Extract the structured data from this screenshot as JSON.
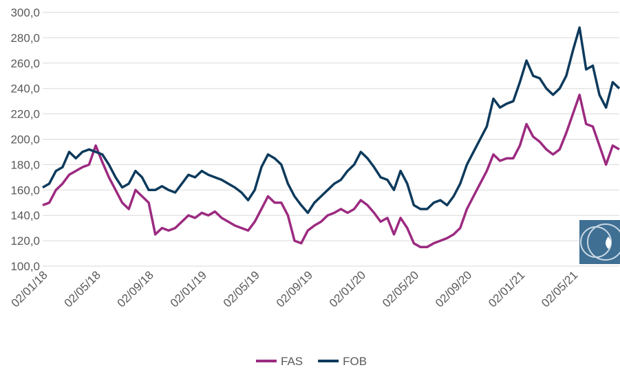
{
  "chart_data": {
    "type": "line",
    "categories": [
      "02/01/18",
      null,
      null,
      null,
      null,
      null,
      null,
      null,
      "02/05/18",
      null,
      null,
      null,
      null,
      null,
      null,
      null,
      "02/09/18",
      null,
      null,
      null,
      null,
      null,
      null,
      null,
      "02/01/19",
      null,
      null,
      null,
      null,
      null,
      null,
      null,
      "02/05/19",
      null,
      null,
      null,
      null,
      null,
      null,
      null,
      "02/09/19",
      null,
      null,
      null,
      null,
      null,
      null,
      null,
      "02/01/20",
      null,
      null,
      null,
      null,
      null,
      null,
      null,
      "02/05/20",
      null,
      null,
      null,
      null,
      null,
      null,
      null,
      "02/09/20",
      null,
      null,
      null,
      null,
      null,
      null,
      null,
      "02/01/21",
      null,
      null,
      null,
      null,
      null,
      null,
      null,
      "02/05/21",
      null,
      null,
      null,
      null,
      null,
      null,
      null
    ],
    "series": [
      {
        "name": "FAS",
        "color": "#9c2a80",
        "values": [
          148,
          150,
          160,
          165,
          172,
          175,
          178,
          180,
          195,
          182,
          170,
          160,
          150,
          145,
          160,
          155,
          150,
          125,
          130,
          128,
          130,
          135,
          140,
          138,
          142,
          140,
          143,
          138,
          135,
          132,
          130,
          128,
          135,
          145,
          155,
          150,
          150,
          140,
          120,
          118,
          128,
          132,
          135,
          140,
          142,
          145,
          142,
          145,
          152,
          148,
          142,
          135,
          138,
          125,
          138,
          130,
          118,
          115,
          115,
          118,
          120,
          122,
          125,
          130,
          145,
          155,
          165,
          175,
          188,
          183,
          185,
          185,
          195,
          212,
          202,
          198,
          192,
          188,
          192,
          205,
          220,
          235,
          212,
          210,
          195,
          180,
          195,
          192
        ]
      },
      {
        "name": "FOB",
        "color": "#0d3a5c",
        "values": [
          162,
          165,
          175,
          178,
          190,
          185,
          190,
          192,
          190,
          188,
          180,
          170,
          162,
          165,
          175,
          170,
          160,
          160,
          163,
          160,
          158,
          165,
          172,
          170,
          175,
          172,
          170,
          168,
          165,
          162,
          158,
          152,
          160,
          178,
          188,
          185,
          180,
          165,
          155,
          148,
          142,
          150,
          155,
          160,
          165,
          168,
          175,
          180,
          190,
          185,
          178,
          170,
          168,
          160,
          175,
          165,
          148,
          145,
          145,
          150,
          152,
          148,
          155,
          165,
          180,
          190,
          200,
          210,
          232,
          225,
          228,
          230,
          245,
          262,
          250,
          248,
          240,
          235,
          240,
          250,
          270,
          288,
          255,
          258,
          235,
          225,
          245,
          240
        ]
      }
    ],
    "ylim": [
      100,
      300
    ],
    "yticks": [
      {
        "value": 100,
        "label": "100,0"
      },
      {
        "value": 120,
        "label": "120,0"
      },
      {
        "value": 140,
        "label": "140,0"
      },
      {
        "value": 160,
        "label": "160,0"
      },
      {
        "value": 180,
        "label": "180,0"
      },
      {
        "value": 200,
        "label": "200,0"
      },
      {
        "value": 220,
        "label": "220,0"
      },
      {
        "value": 240,
        "label": "240,0"
      },
      {
        "value": 260,
        "label": "260,0"
      },
      {
        "value": 280,
        "label": "280,0"
      },
      {
        "value": 300,
        "label": "300,0"
      }
    ],
    "grid": true,
    "legend": "bottom"
  }
}
